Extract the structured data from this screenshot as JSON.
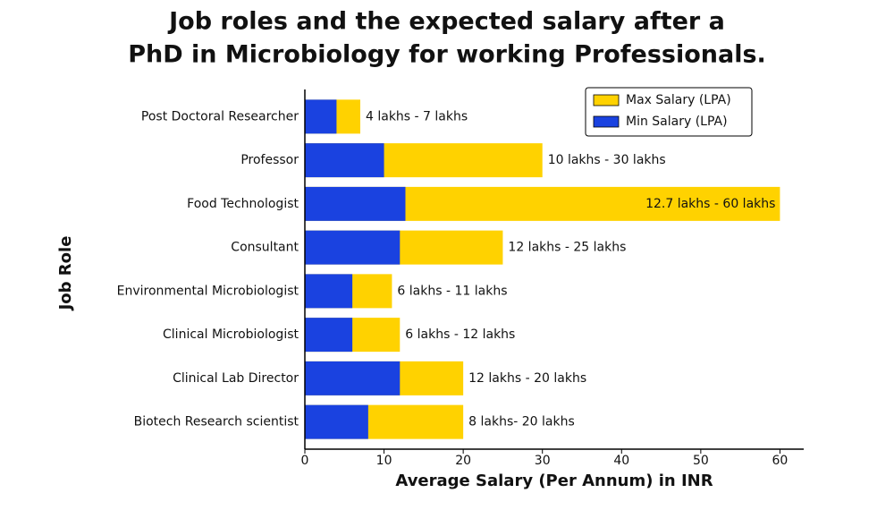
{
  "chart_data": {
    "type": "overlapped-bar",
    "title": [
      "Job roles and the expected salary after a",
      "PhD in Microbiology for working Professionals."
    ],
    "x_label": "Average Salary (Per Annum) in INR",
    "y_label": "Job Role",
    "categories": [
      "Post Doctoral Researcher",
      "Professor",
      "Food Technologist",
      "Consultant",
      "Environmental Microbiologist",
      "Clinical Microbiologist",
      "Clinical Lab Director",
      "Biotech Research scientist"
    ],
    "series": [
      {
        "name": "Max Salary (LPA)",
        "color": "#ffd200",
        "values": [
          7,
          30,
          60,
          25,
          11,
          12,
          20,
          20
        ],
        "value_labels": [
          "4 lakhs - 7 lakhs",
          "10 lakhs - 30 lakhs",
          "12.7 lakhs - 60 lakhs",
          "12 lakhs - 25 lakhs",
          "6 lakhs - 11 lakhs",
          "6 lakhs - 12 lakhs",
          "12 lakhs - 20 lakhs",
          "8 lakhs- 20 lakhs"
        ]
      },
      {
        "name": "Min Salary (LPA)",
        "color": "#1a42e0",
        "values": [
          4,
          10,
          12.7,
          12,
          6,
          6,
          12,
          8
        ]
      }
    ],
    "xlim": [
      0,
      63
    ],
    "xticks": [
      0,
      10,
      20,
      30,
      40,
      50,
      60
    ],
    "legend": "upper right"
  }
}
